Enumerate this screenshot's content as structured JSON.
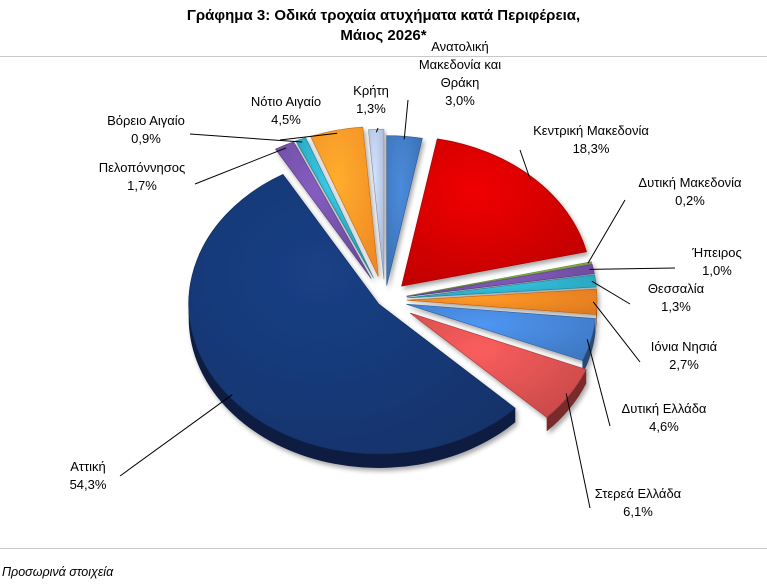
{
  "title": {
    "line1": "Γράφημα 3: Οδικά τροχαία ατυχήματα κατά Περιφέρεια,",
    "line2": "Μάιος 2026*"
  },
  "footnote": "Προσωρινά στοιχεία",
  "chart_data": {
    "type": "pie",
    "style": "3d-exploded",
    "legend": "none",
    "slices": [
      {
        "name_lines": [
          "Ανατολική",
          "Μακεδονία και",
          "Θράκη"
        ],
        "value": 3.0,
        "value_label": "3,0%",
        "color": "#3b6fb0"
      },
      {
        "name_lines": [
          "Κεντρική Μακεδονία"
        ],
        "value": 18.3,
        "value_label": "18,3%",
        "color": "#c00000"
      },
      {
        "name_lines": [
          "Δυτική Μακεδονία"
        ],
        "value": 0.2,
        "value_label": "0,2%",
        "color": "#7aa63c"
      },
      {
        "name_lines": [
          "Ήπειρος"
        ],
        "value": 1.0,
        "value_label": "1,0%",
        "color": "#6a4a9a"
      },
      {
        "name_lines": [
          "Θεσσαλία"
        ],
        "value": 1.3,
        "value_label": "1,3%",
        "color": "#2aa0b8"
      },
      {
        "name_lines": [
          "Ιόνια Νησιά"
        ],
        "value": 2.7,
        "value_label": "2,7%",
        "color": "#e07a1f"
      },
      {
        "name_lines": [
          "Δυτική Ελλάδα"
        ],
        "value": 4.6,
        "value_label": "4,6%",
        "color": "#3f78c2"
      },
      {
        "name_lines": [
          "Στερεά Ελλάδα"
        ],
        "value": 6.1,
        "value_label": "6,1%",
        "color": "#c94a4a"
      },
      {
        "name_lines": [
          "Αττική"
        ],
        "value": 54.3,
        "value_label": "54,3%",
        "color": "#15336b"
      },
      {
        "name_lines": [
          "Πελοπόννησος"
        ],
        "value": 1.7,
        "value_label": "1,7%",
        "color": "#6a4a9a"
      },
      {
        "name_lines": [
          "Βόρειο Αιγαίο"
        ],
        "value": 0.9,
        "value_label": "0,9%",
        "color": "#2aa0b8"
      },
      {
        "name_lines": [
          "Νότιο Αιγαίο"
        ],
        "value": 4.5,
        "value_label": "4,5%",
        "color": "#f08a24"
      },
      {
        "name_lines": [
          "Κρήτη"
        ],
        "value": 1.3,
        "value_label": "1,3%",
        "color": "#a9b6d4"
      }
    ]
  }
}
